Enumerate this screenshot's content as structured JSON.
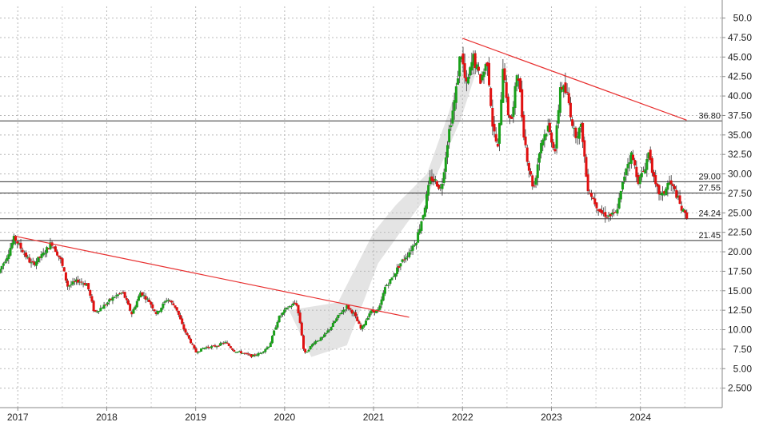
{
  "chart_data": {
    "type": "candlestick",
    "title": "",
    "xlabel": "",
    "ylabel": "",
    "ylim": [
      0,
      51.5
    ],
    "xlim": [
      2016.8,
      2024.92
    ],
    "grid": true,
    "y_ticks": [
      2.5,
      5,
      7.5,
      10,
      12.5,
      15,
      17.5,
      20,
      22.5,
      25,
      27.5,
      30,
      32.5,
      35,
      37.5,
      40,
      42.5,
      45,
      47.5,
      50
    ],
    "y_tick_labels": [
      "2.500",
      "5.00",
      "7.50",
      "10.00",
      "12.50",
      "15.00",
      "17.50",
      "20.00",
      "22.50",
      "25.00",
      "27.50",
      "30.00",
      "32.50",
      "35.00",
      "37.50",
      "40.00",
      "42.50",
      "45.00",
      "47.50",
      "50.0"
    ],
    "x_ticks": [
      2017,
      2018,
      2019,
      2020,
      2021,
      2022,
      2023,
      2024
    ],
    "x_tick_labels": [
      "2017",
      "2018",
      "2019",
      "2020",
      "2021",
      "2022",
      "2023",
      "2024"
    ],
    "horizontal_levels": [
      {
        "value": 36.8,
        "label": "36.80"
      },
      {
        "value": 29.0,
        "label": "29.00"
      },
      {
        "value": 27.55,
        "label": "27.55"
      },
      {
        "value": 24.24,
        "label": "24.24"
      },
      {
        "value": 21.45,
        "label": "21.45"
      }
    ],
    "trend_lines": [
      {
        "from": [
          2016.97,
          22.0
        ],
        "to": [
          2021.4,
          11.6
        ],
        "color": "#e83030"
      },
      {
        "from": [
          2022.0,
          47.4
        ],
        "to": [
          2024.52,
          36.9
        ],
        "color": "#e83030"
      }
    ],
    "up_color": "#1aa01a",
    "down_color": "#e01010",
    "price_path": [
      [
        2016.8,
        17.3
      ],
      [
        2016.9,
        19.5
      ],
      [
        2016.98,
        21.8
      ],
      [
        2017.08,
        20.0
      ],
      [
        2017.18,
        18.3
      ],
      [
        2017.3,
        19.6
      ],
      [
        2017.4,
        21.2
      ],
      [
        2017.5,
        19.0
      ],
      [
        2017.58,
        15.6
      ],
      [
        2017.7,
        16.3
      ],
      [
        2017.8,
        15.8
      ],
      [
        2017.88,
        12.2
      ],
      [
        2017.98,
        13.0
      ],
      [
        2018.1,
        14.2
      ],
      [
        2018.2,
        14.8
      ],
      [
        2018.3,
        12.0
      ],
      [
        2018.4,
        14.8
      ],
      [
        2018.5,
        13.6
      ],
      [
        2018.58,
        12.0
      ],
      [
        2018.7,
        14.0
      ],
      [
        2018.8,
        12.8
      ],
      [
        2018.88,
        10.2
      ],
      [
        2018.96,
        8.5
      ],
      [
        2019.02,
        7.1
      ],
      [
        2019.12,
        7.7
      ],
      [
        2019.25,
        7.9
      ],
      [
        2019.35,
        8.4
      ],
      [
        2019.45,
        7.3
      ],
      [
        2019.55,
        7.0
      ],
      [
        2019.65,
        6.6
      ],
      [
        2019.75,
        7.0
      ],
      [
        2019.85,
        8.0
      ],
      [
        2019.95,
        11.5
      ],
      [
        2020.05,
        12.8
      ],
      [
        2020.15,
        13.5
      ],
      [
        2020.2,
        10.5
      ],
      [
        2020.24,
        6.8
      ],
      [
        2020.35,
        8.4
      ],
      [
        2020.45,
        9.0
      ],
      [
        2020.55,
        10.5
      ],
      [
        2020.65,
        12.2
      ],
      [
        2020.72,
        13.0
      ],
      [
        2020.8,
        12.0
      ],
      [
        2020.88,
        10.0
      ],
      [
        2020.98,
        12.3
      ],
      [
        2021.08,
        12.5
      ],
      [
        2021.15,
        15.5
      ],
      [
        2021.22,
        16.5
      ],
      [
        2021.32,
        18.5
      ],
      [
        2021.42,
        20.0
      ],
      [
        2021.5,
        21.5
      ],
      [
        2021.58,
        25.0
      ],
      [
        2021.66,
        29.5
      ],
      [
        2021.72,
        29.0
      ],
      [
        2021.78,
        28.0
      ],
      [
        2021.86,
        35.0
      ],
      [
        2021.94,
        40.0
      ],
      [
        2022.0,
        46.0
      ],
      [
        2022.06,
        41.0
      ],
      [
        2022.14,
        45.0
      ],
      [
        2022.22,
        42.0
      ],
      [
        2022.3,
        44.5
      ],
      [
        2022.36,
        36.0
      ],
      [
        2022.42,
        33.0
      ],
      [
        2022.48,
        45.0
      ],
      [
        2022.52,
        38.0
      ],
      [
        2022.58,
        37.0
      ],
      [
        2022.64,
        44.0
      ],
      [
        2022.7,
        36.0
      ],
      [
        2022.76,
        31.0
      ],
      [
        2022.82,
        28.0
      ],
      [
        2022.9,
        34.0
      ],
      [
        2022.98,
        36.0
      ],
      [
        2023.06,
        33.0
      ],
      [
        2023.12,
        41.5
      ],
      [
        2023.2,
        40.0
      ],
      [
        2023.28,
        35.0
      ],
      [
        2023.36,
        36.0
      ],
      [
        2023.42,
        28.5
      ],
      [
        2023.5,
        26.5
      ],
      [
        2023.58,
        25.0
      ],
      [
        2023.66,
        24.6
      ],
      [
        2023.74,
        24.8
      ],
      [
        2023.8,
        27.5
      ],
      [
        2023.86,
        31.0
      ],
      [
        2023.92,
        32.5
      ],
      [
        2024.0,
        29.0
      ],
      [
        2024.06,
        30.5
      ],
      [
        2024.12,
        33.0
      ],
      [
        2024.18,
        28.5
      ],
      [
        2024.26,
        27.0
      ],
      [
        2024.34,
        29.0
      ],
      [
        2024.42,
        27.5
      ],
      [
        2024.48,
        25.5
      ],
      [
        2024.53,
        24.6
      ]
    ],
    "band_path": [
      [
        2020.05,
        12.5
      ],
      [
        2020.6,
        13.5
      ],
      [
        2021.0,
        22.5
      ],
      [
        2021.25,
        26.0
      ],
      [
        2021.6,
        30.0
      ],
      [
        2021.85,
        38.0
      ],
      [
        2021.98,
        43.0
      ],
      [
        2022.15,
        43.0
      ],
      [
        2021.98,
        37.0
      ],
      [
        2021.62,
        27.5
      ],
      [
        2021.3,
        22.5
      ],
      [
        2021.05,
        18.5
      ],
      [
        2020.7,
        8.0
      ],
      [
        2020.3,
        6.5
      ]
    ]
  }
}
